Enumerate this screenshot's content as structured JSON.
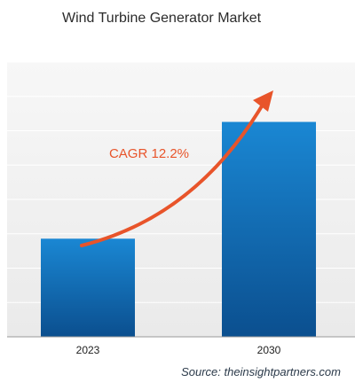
{
  "chart_data": {
    "type": "bar",
    "title": "Wind Turbine Generator Market",
    "categories": [
      "2023",
      "2030"
    ],
    "values": [
      1.0,
      2.19
    ],
    "ylim": [
      0,
      2.8
    ],
    "annotation": "CAGR 12.2%",
    "grid": true,
    "colors": {
      "bar_top": "#1a87d3",
      "bar_bottom": "#0b4f8f",
      "arrow": "#e8542a",
      "annotation": "#e8542a"
    }
  },
  "source": "Source: theinsightpartners.com"
}
